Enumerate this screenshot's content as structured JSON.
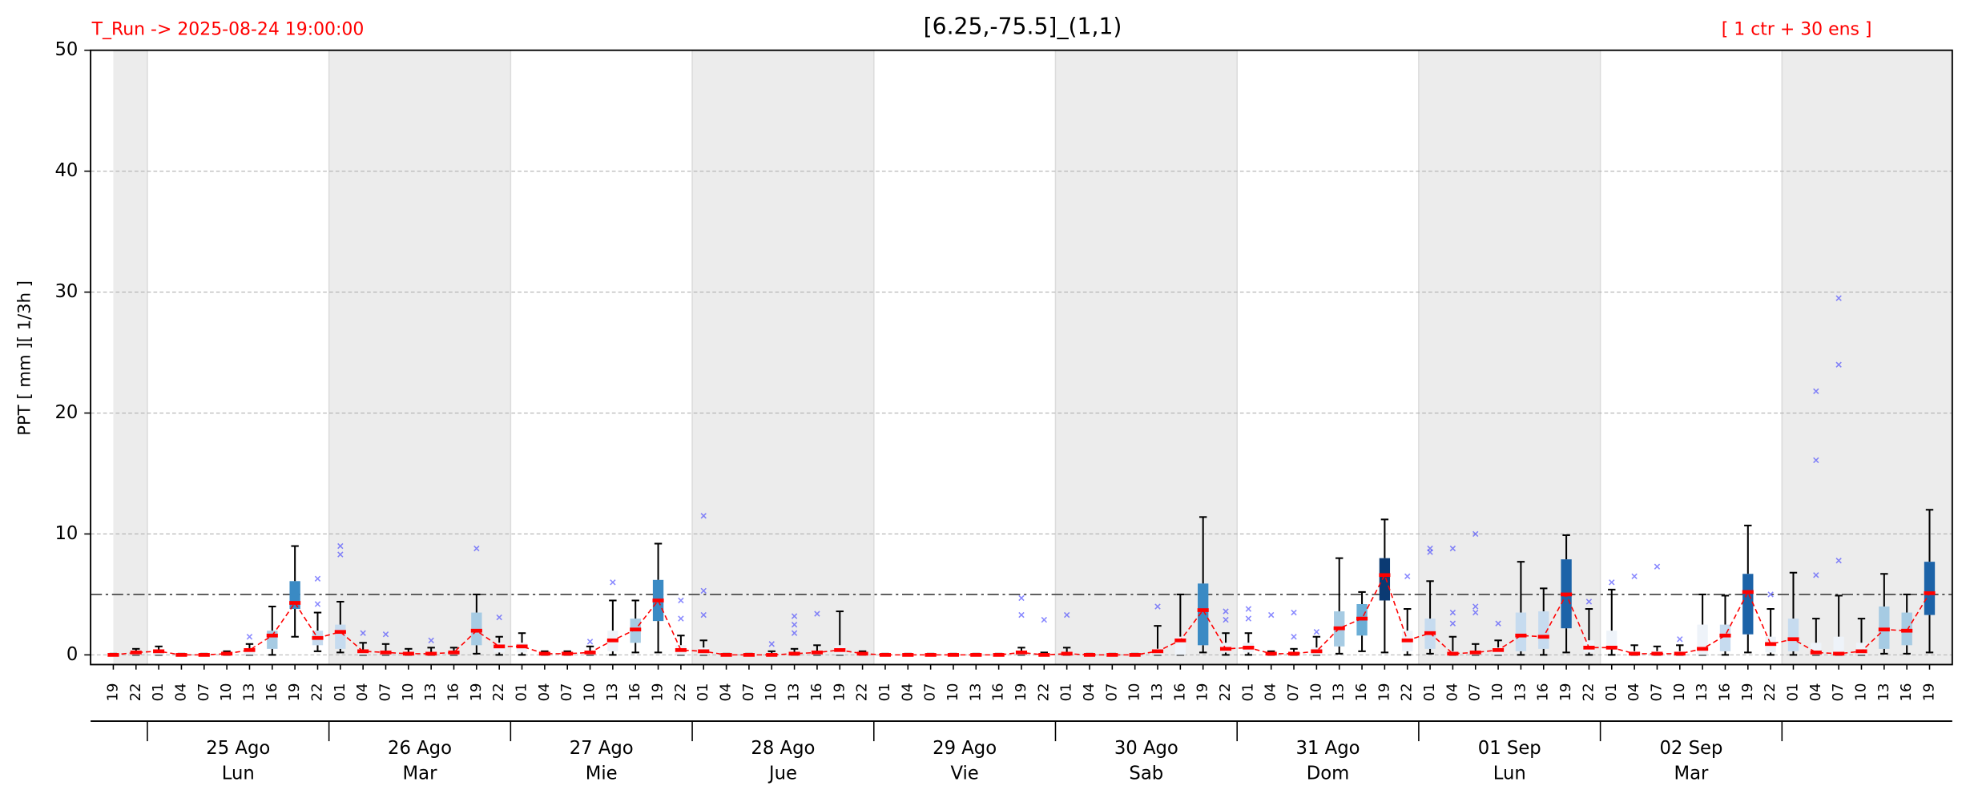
{
  "chart_data": {
    "type": "box",
    "title": "[6.25,-75.5]_(1,1)",
    "run_label": "T_Run -> 2025-08-24  19:00:00",
    "members_label": "[ 1 ctr + 30 ens ]",
    "ylabel": "PPT  [ mm ][ 1/3h ]",
    "ylim": [
      -0.8,
      50
    ],
    "yticks": [
      0,
      10,
      20,
      30,
      40,
      50
    ],
    "grid": true,
    "threshold": 5,
    "mean_color": "#ff0000",
    "outlier_color": "#3b3bff",
    "categories": [
      "19",
      "22",
      "01",
      "04",
      "07",
      "10",
      "13",
      "16",
      "19",
      "22",
      "01",
      "04",
      "07",
      "10",
      "13",
      "16",
      "19",
      "22",
      "01",
      "04",
      "07",
      "10",
      "13",
      "16",
      "19",
      "22",
      "01",
      "04",
      "07",
      "10",
      "13",
      "16",
      "19",
      "22",
      "01",
      "04",
      "07",
      "10",
      "13",
      "16",
      "19",
      "22",
      "01",
      "04",
      "07",
      "10",
      "13",
      "16",
      "19",
      "22",
      "01",
      "04",
      "07",
      "10",
      "13",
      "16",
      "19",
      "22",
      "01",
      "04",
      "07",
      "10",
      "13",
      "16",
      "19",
      "22",
      "01",
      "04",
      "07",
      "10",
      "13",
      "16",
      "19",
      "22",
      "01",
      "04",
      "07",
      "10",
      "13",
      "16",
      "19"
    ],
    "days": [
      {
        "date": "25 Ago",
        "weekday": "Lun"
      },
      {
        "date": "26 Ago",
        "weekday": "Mar"
      },
      {
        "date": "27 Ago",
        "weekday": "Mie"
      },
      {
        "date": "28 Ago",
        "weekday": "Jue"
      },
      {
        "date": "29 Ago",
        "weekday": "Vie"
      },
      {
        "date": "30 Ago",
        "weekday": "Sab"
      },
      {
        "date": "31 Ago",
        "weekday": "Dom"
      },
      {
        "date": "01 Sep",
        "weekday": "Lun"
      },
      {
        "date": "02 Sep",
        "weekday": "Mar"
      }
    ],
    "boxes": [
      [
        0,
        0,
        0,
        0.1
      ],
      [
        0,
        0,
        0.2,
        0.5
      ],
      [
        0,
        0,
        0.3,
        0.7
      ],
      [
        0,
        0,
        0,
        0.1
      ],
      [
        0,
        0,
        0,
        0.1
      ],
      [
        0,
        0,
        0.1,
        0.3
      ],
      [
        0,
        0,
        0.5,
        0.9
      ],
      [
        0,
        0.5,
        2,
        4
      ],
      [
        1.5,
        3.8,
        6.1,
        9
      ],
      [
        0.3,
        0.8,
        2,
        3.5
      ],
      [
        0.2,
        0.5,
        2.5,
        4.4
      ],
      [
        0,
        0,
        0.4,
        1
      ],
      [
        0,
        0,
        0.3,
        0.9
      ],
      [
        0,
        0,
        0.2,
        0.5
      ],
      [
        0,
        0,
        0.2,
        0.6
      ],
      [
        0,
        0,
        0.3,
        0.6
      ],
      [
        0.1,
        0.8,
        3.5,
        5
      ],
      [
        0,
        0.2,
        1,
        1.5
      ],
      [
        0,
        0.2,
        1,
        1.8
      ],
      [
        0,
        0,
        0.1,
        0.3
      ],
      [
        0,
        0,
        0.1,
        0.3
      ],
      [
        0,
        0,
        0.3,
        0.7
      ],
      [
        0,
        0.3,
        2,
        4.5
      ],
      [
        0.2,
        1,
        3,
        4.5
      ],
      [
        0.2,
        2.8,
        6.2,
        9.2
      ],
      [
        0,
        0,
        0.8,
        1.6
      ],
      [
        0,
        0,
        0.6,
        1.2
      ],
      [
        0,
        0,
        0,
        0.1
      ],
      [
        0,
        0,
        0,
        0.1
      ],
      [
        0,
        0,
        0,
        0.3
      ],
      [
        0,
        0,
        0,
        0.5
      ],
      [
        0,
        0,
        0.3,
        0.8
      ],
      [
        0,
        0,
        0.8,
        3.6
      ],
      [
        0,
        0,
        0,
        0.3
      ],
      [
        0,
        0,
        0,
        0.1
      ],
      [
        0,
        0,
        0,
        0.1
      ],
      [
        0,
        0,
        0,
        0.1
      ],
      [
        0,
        0,
        0,
        0.1
      ],
      [
        0,
        0,
        0,
        0.1
      ],
      [
        0,
        0,
        0,
        0.1
      ],
      [
        0,
        0,
        0.2,
        0.6
      ],
      [
        0,
        0,
        0,
        0.2
      ],
      [
        0,
        0,
        0.2,
        0.6
      ],
      [
        0,
        0,
        0,
        0.1
      ],
      [
        0,
        0,
        0,
        0.1
      ],
      [
        0,
        0,
        0,
        0.1
      ],
      [
        0,
        0,
        0.5,
        2.4
      ],
      [
        0,
        0,
        1.5,
        5
      ],
      [
        0.2,
        0.8,
        5.9,
        11.4
      ],
      [
        0,
        0.2,
        1,
        1.8
      ],
      [
        0,
        0.2,
        1,
        1.8
      ],
      [
        0,
        0,
        0.1,
        0.3
      ],
      [
        0,
        0,
        0.2,
        0.5
      ],
      [
        0,
        0,
        0.6,
        1.5
      ],
      [
        0.1,
        0.7,
        3.6,
        8
      ],
      [
        0.3,
        1.6,
        4.2,
        5.2
      ],
      [
        0.2,
        4.5,
        8,
        11.2
      ],
      [
        0,
        0.3,
        2,
        3.8
      ],
      [
        0.1,
        0.5,
        3,
        6.1
      ],
      [
        0,
        0,
        0.3,
        1.5
      ],
      [
        0,
        0,
        0.3,
        0.9
      ],
      [
        0,
        0,
        0.6,
        1.2
      ],
      [
        0,
        0.3,
        3.5,
        7.7
      ],
      [
        0,
        0.5,
        3.6,
        5.5
      ],
      [
        0.2,
        2.2,
        7.9,
        9.9
      ],
      [
        0,
        0.2,
        1.2,
        3.8
      ],
      [
        0,
        0.5,
        2,
        5.4
      ],
      [
        0,
        0,
        0.3,
        0.8
      ],
      [
        0,
        0,
        0.3,
        0.7
      ],
      [
        0,
        0,
        0.3,
        0.8
      ],
      [
        0,
        0,
        2.5,
        5
      ],
      [
        0,
        0.3,
        2.5,
        4.9
      ],
      [
        0.2,
        1.7,
        6.7,
        10.7
      ],
      [
        0,
        0.2,
        1.5,
        3.8
      ],
      [
        0,
        0.3,
        3,
        6.8
      ],
      [
        0,
        0,
        1,
        3
      ],
      [
        0,
        0,
        1.5,
        4.9
      ],
      [
        0,
        0,
        1,
        3
      ],
      [
        0.1,
        0.5,
        4,
        6.7
      ],
      [
        0.1,
        0.8,
        3.5,
        5
      ],
      [
        0.2,
        3.3,
        7.7,
        12
      ]
    ],
    "means": [
      0,
      0.2,
      0.3,
      0,
      0,
      0.1,
      0.4,
      1.6,
      4.3,
      1.4,
      1.9,
      0.3,
      0.2,
      0.1,
      0.1,
      0.2,
      2.0,
      0.7,
      0.7,
      0.1,
      0.1,
      0.2,
      1.2,
      2.1,
      4.5,
      0.4,
      0.3,
      0,
      0,
      0,
      0.1,
      0.2,
      0.4,
      0.1,
      0,
      0,
      0,
      0,
      0,
      0,
      0.2,
      0,
      0.1,
      0,
      0,
      0,
      0.3,
      1.2,
      3.7,
      0.5,
      0.6,
      0.1,
      0.1,
      0.3,
      2.2,
      3.0,
      6.6,
      1.2,
      1.8,
      0.1,
      0.2,
      0.4,
      1.6,
      1.5,
      5.0,
      0.6,
      0.6,
      0.1,
      0.1,
      0.1,
      0.5,
      1.6,
      5.2,
      0.9,
      1.3,
      0.2,
      0.1,
      0.3,
      2.1,
      2.0,
      5.1
    ],
    "box_colors": [
      "#eef3f9",
      "#eef3f9",
      "#eef3f9",
      "#eef3f9",
      "#eef3f9",
      "#eef3f9",
      "#eef3f9",
      "#a6cbe3",
      "#3a8ac4",
      "#c6dbef",
      "#c6dbef",
      "#eef3f9",
      "#eef3f9",
      "#eef3f9",
      "#eef3f9",
      "#eef3f9",
      "#a6cbe3",
      "#eef3f9",
      "#eef3f9",
      "#eef3f9",
      "#eef3f9",
      "#eef3f9",
      "#eef3f9",
      "#a6cbe3",
      "#3a8ac4",
      "#eef3f9",
      "#eef3f9",
      "#eef3f9",
      "#eef3f9",
      "#eef3f9",
      "#eef3f9",
      "#eef3f9",
      "#eef3f9",
      "#eef3f9",
      "#eef3f9",
      "#eef3f9",
      "#eef3f9",
      "#eef3f9",
      "#eef3f9",
      "#eef3f9",
      "#eef3f9",
      "#eef3f9",
      "#eef3f9",
      "#eef3f9",
      "#eef3f9",
      "#eef3f9",
      "#eef3f9",
      "#eef3f9",
      "#3a8ac4",
      "#eef3f9",
      "#eef3f9",
      "#eef3f9",
      "#eef3f9",
      "#eef3f9",
      "#a6cbe3",
      "#6baed6",
      "#0b3a73",
      "#eef3f9",
      "#c6dbef",
      "#eef3f9",
      "#eef3f9",
      "#eef3f9",
      "#c6dbef",
      "#c6dbef",
      "#1c63a8",
      "#eef3f9",
      "#eef3f9",
      "#eef3f9",
      "#eef3f9",
      "#eef3f9",
      "#eef3f9",
      "#c6dbef",
      "#1c63a8",
      "#eef3f9",
      "#c6dbef",
      "#eef3f9",
      "#eef3f9",
      "#eef3f9",
      "#a6cbe3",
      "#a6cbe3",
      "#1c63a8"
    ],
    "outliers": [
      [],
      [],
      [],
      [],
      [],
      [],
      [
        1.5
      ],
      [],
      [],
      [
        6.3,
        4.2
      ],
      [
        9.0,
        8.3
      ],
      [
        1.8
      ],
      [
        1.7
      ],
      [],
      [
        1.2
      ],
      [],
      [
        8.8
      ],
      [
        3.1
      ],
      [],
      [],
      [],
      [
        1.1
      ],
      [
        6.0
      ],
      [],
      [],
      [
        4.5,
        3.0
      ],
      [
        11.5,
        5.3,
        3.3
      ],
      [],
      [],
      [
        0.9
      ],
      [
        3.2,
        2.5,
        1.8
      ],
      [
        3.4
      ],
      [],
      [],
      [],
      [],
      [],
      [],
      [],
      [],
      [
        4.7,
        3.3
      ],
      [
        2.9
      ],
      [
        3.3
      ],
      [],
      [],
      [],
      [
        4.0
      ],
      [],
      [],
      [
        3.6,
        2.9
      ],
      [
        3.8,
        3.0
      ],
      [
        3.3
      ],
      [
        3.5,
        1.5
      ],
      [
        1.9
      ],
      [],
      [],
      [],
      [
        6.5
      ],
      [
        8.8,
        8.5
      ],
      [
        8.8,
        3.5,
        2.6
      ],
      [
        10.0,
        4.0,
        3.5
      ],
      [
        2.6
      ],
      [],
      [],
      [],
      [
        4.4
      ],
      [
        6.0
      ],
      [
        6.5
      ],
      [
        7.3
      ],
      [
        1.3
      ],
      [],
      [],
      [],
      [
        5.0
      ],
      [],
      [
        21.8,
        16.1,
        6.6
      ],
      [
        29.5,
        24.0,
        7.8
      ],
      [],
      [],
      [],
      []
    ]
  }
}
